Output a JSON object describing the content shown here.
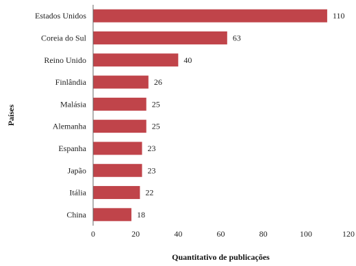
{
  "chart_data": {
    "type": "bar",
    "orientation": "horizontal",
    "categories": [
      "Estados Unidos",
      "Coreia do Sul",
      "Reino Unido",
      "Finlândia",
      "Malásia",
      "Alemanha",
      "Espanha",
      "Japão",
      "Itália",
      "China"
    ],
    "values": [
      110,
      63,
      40,
      26,
      25,
      25,
      23,
      23,
      22,
      18
    ],
    "xlabel": "Quantitativo de publicações",
    "ylabel": "Países",
    "xlim": [
      0,
      120
    ],
    "xticks": [
      0,
      20,
      40,
      60,
      80,
      100,
      120
    ],
    "bar_color": "#c0444a",
    "grid": false,
    "data_labels": true
  }
}
